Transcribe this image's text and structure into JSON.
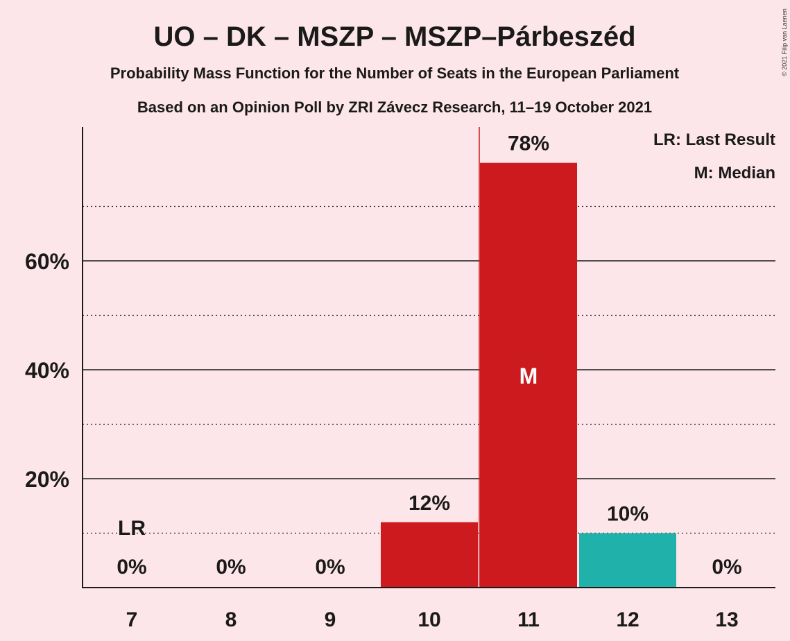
{
  "title": "UO – DK – MSZP – MSZP–Párbeszéd",
  "subtitle1": "Probability Mass Function for the Number of Seats in the European Parliament",
  "subtitle2": "Based on an Opinion Poll by ZRI Závecz Research, 11–19 October 2021",
  "copyright": "© 2021 Filip van Laenen",
  "legend": {
    "last_result": "LR: Last Result",
    "median": "M: Median"
  },
  "colors": {
    "bar": "#CC1A1E",
    "bar_last": "#20B2AA",
    "median_line": "#CC1A1E",
    "background": "#FDE6E9"
  },
  "chart_data": {
    "type": "bar",
    "title": "UO – DK – MSZP – MSZP–Párbeszéd",
    "xlabel": "",
    "ylabel": "",
    "categories": [
      "7",
      "8",
      "9",
      "10",
      "11",
      "12",
      "13"
    ],
    "values": [
      0,
      0,
      0,
      12,
      78,
      10,
      0
    ],
    "labels": [
      "0%",
      "0%",
      "0%",
      "12%",
      "78%",
      "10%",
      "0%"
    ],
    "ylim": [
      0,
      85
    ],
    "yticks_major": [
      20,
      40,
      60
    ],
    "ytick_labels": [
      "20%",
      "40%",
      "60%"
    ],
    "yticks_minor": [
      10,
      30,
      50,
      70
    ],
    "median_category": "11",
    "median_label": "M",
    "last_result_category": "7",
    "last_result_label": "LR",
    "legend_position": "top-right"
  }
}
